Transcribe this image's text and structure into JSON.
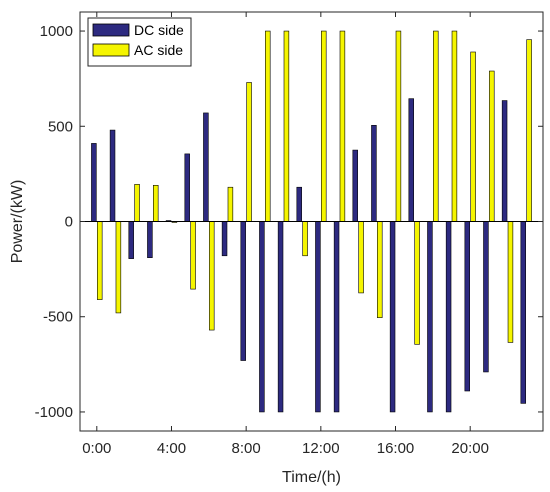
{
  "chart_data": {
    "type": "bar",
    "xlabel": "Time/(h)",
    "ylabel": "Power/(kW)",
    "xlim": [
      -0.9,
      23.9
    ],
    "ylim": [
      -1100,
      1100
    ],
    "x": [
      0,
      1,
      2,
      3,
      4,
      5,
      6,
      7,
      8,
      9,
      10,
      11,
      12,
      13,
      14,
      15,
      16,
      17,
      18,
      19,
      20,
      21,
      22,
      23
    ],
    "x_ticks": [
      0,
      4,
      8,
      12,
      16,
      20
    ],
    "x_tick_labels": [
      "0:00",
      "4:00",
      "8:00",
      "12:00",
      "16:00",
      "20:00"
    ],
    "y_ticks": [
      -1000,
      -500,
      0,
      500,
      1000
    ],
    "y_tick_labels": [
      "-1000",
      "-500",
      "0",
      "500",
      "1000"
    ],
    "legend_position": "top-left",
    "grid": false,
    "series": [
      {
        "name": "DC side",
        "color": "#2d2a80",
        "values": [
          410,
          480,
          -195,
          -190,
          5,
          355,
          570,
          -180,
          -730,
          -1000,
          -1000,
          180,
          -1000,
          -1000,
          375,
          505,
          -1000,
          645,
          -1000,
          -1000,
          -890,
          -790,
          635,
          -955
        ]
      },
      {
        "name": "AC side",
        "color": "#f5f500",
        "values": [
          -410,
          -480,
          195,
          190,
          -5,
          -355,
          -570,
          180,
          730,
          1000,
          1000,
          -180,
          1000,
          1000,
          -375,
          -505,
          1000,
          -645,
          1000,
          1000,
          890,
          790,
          -635,
          955
        ]
      }
    ]
  }
}
